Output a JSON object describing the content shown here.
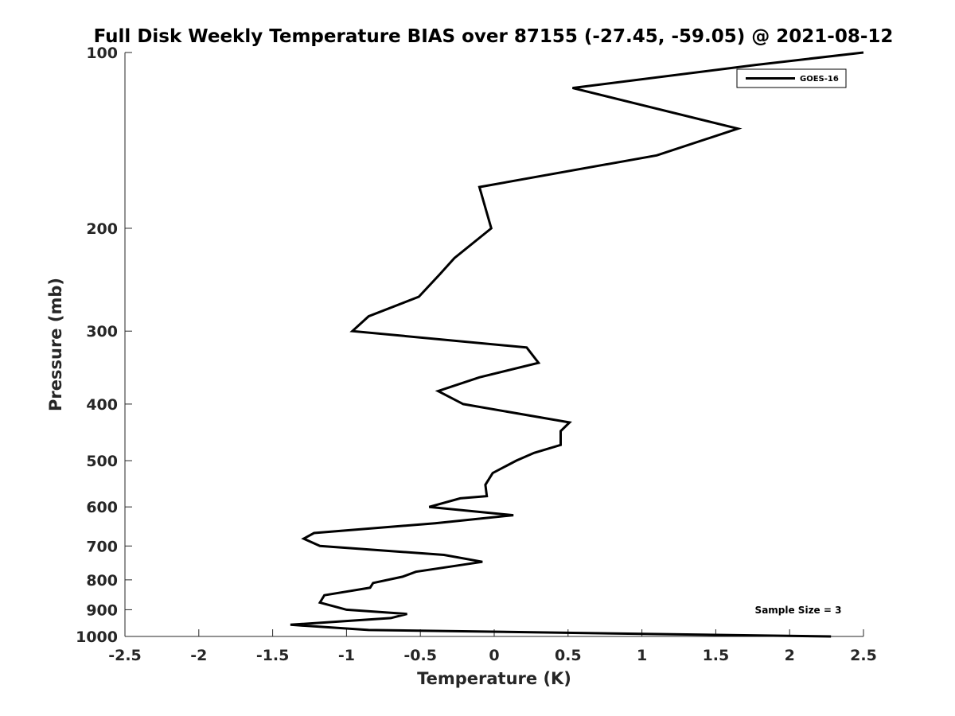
{
  "chart_data": {
    "type": "line",
    "title": "Full Disk Weekly Temperature BIAS over 87155 (-27.45, -59.05) @ 2021-08-12",
    "xlabel": "Temperature (K)",
    "ylabel": "Pressure (mb)",
    "xlim": [
      -2.5,
      2.5
    ],
    "ylim": [
      100,
      1000
    ],
    "yscale": "log",
    "yreversed": true,
    "x_ticks": [
      "-2.5",
      "-2",
      "-1.5",
      "-1",
      "-0.5",
      "0",
      "0.5",
      "1",
      "1.5",
      "2",
      "2.5"
    ],
    "x_tick_values": [
      -2.5,
      -2,
      -1.5,
      -1,
      -0.5,
      0,
      0.5,
      1,
      1.5,
      2,
      2.5
    ],
    "y_ticks": [
      "100",
      "200",
      "300",
      "400",
      "500",
      "600",
      "700",
      "800",
      "900",
      "1000"
    ],
    "y_tick_values": [
      100,
      200,
      300,
      400,
      500,
      600,
      700,
      800,
      900,
      1000
    ],
    "grid": false,
    "legend_position": "top-right",
    "annotation": "Sample Size = 3",
    "series": [
      {
        "name": "GOES-16",
        "color": "#000000",
        "points": [
          [
            2.5,
            100
          ],
          [
            1.77,
            105
          ],
          [
            0.53,
            115
          ],
          [
            1.65,
            135
          ],
          [
            1.1,
            150
          ],
          [
            -0.1,
            170
          ],
          [
            -0.02,
            200
          ],
          [
            -0.27,
            225
          ],
          [
            -0.37,
            240
          ],
          [
            -0.51,
            262
          ],
          [
            -0.85,
            283
          ],
          [
            -0.96,
            300
          ],
          [
            0.22,
            320
          ],
          [
            0.3,
            340
          ],
          [
            -0.1,
            360
          ],
          [
            -0.38,
            380
          ],
          [
            -0.21,
            400
          ],
          [
            0.51,
            430
          ],
          [
            0.45,
            445
          ],
          [
            0.45,
            470
          ],
          [
            0.27,
            485
          ],
          [
            0.15,
            500
          ],
          [
            -0.01,
            525
          ],
          [
            -0.06,
            550
          ],
          [
            -0.05,
            575
          ],
          [
            -0.23,
            580
          ],
          [
            -0.44,
            600
          ],
          [
            0.13,
            620
          ],
          [
            -0.4,
            640
          ],
          [
            -1.22,
            665
          ],
          [
            -1.29,
            680
          ],
          [
            -1.18,
            700
          ],
          [
            -0.34,
            725
          ],
          [
            -0.08,
            745
          ],
          [
            -0.53,
            775
          ],
          [
            -0.62,
            790
          ],
          [
            -0.82,
            810
          ],
          [
            -0.84,
            825
          ],
          [
            -1.15,
            850
          ],
          [
            -1.18,
            875
          ],
          [
            -1.0,
            900
          ],
          [
            -0.59,
            915
          ],
          [
            -0.7,
            930
          ],
          [
            -1.38,
            955
          ],
          [
            -0.85,
            975
          ],
          [
            2.28,
            1000
          ]
        ]
      }
    ]
  }
}
